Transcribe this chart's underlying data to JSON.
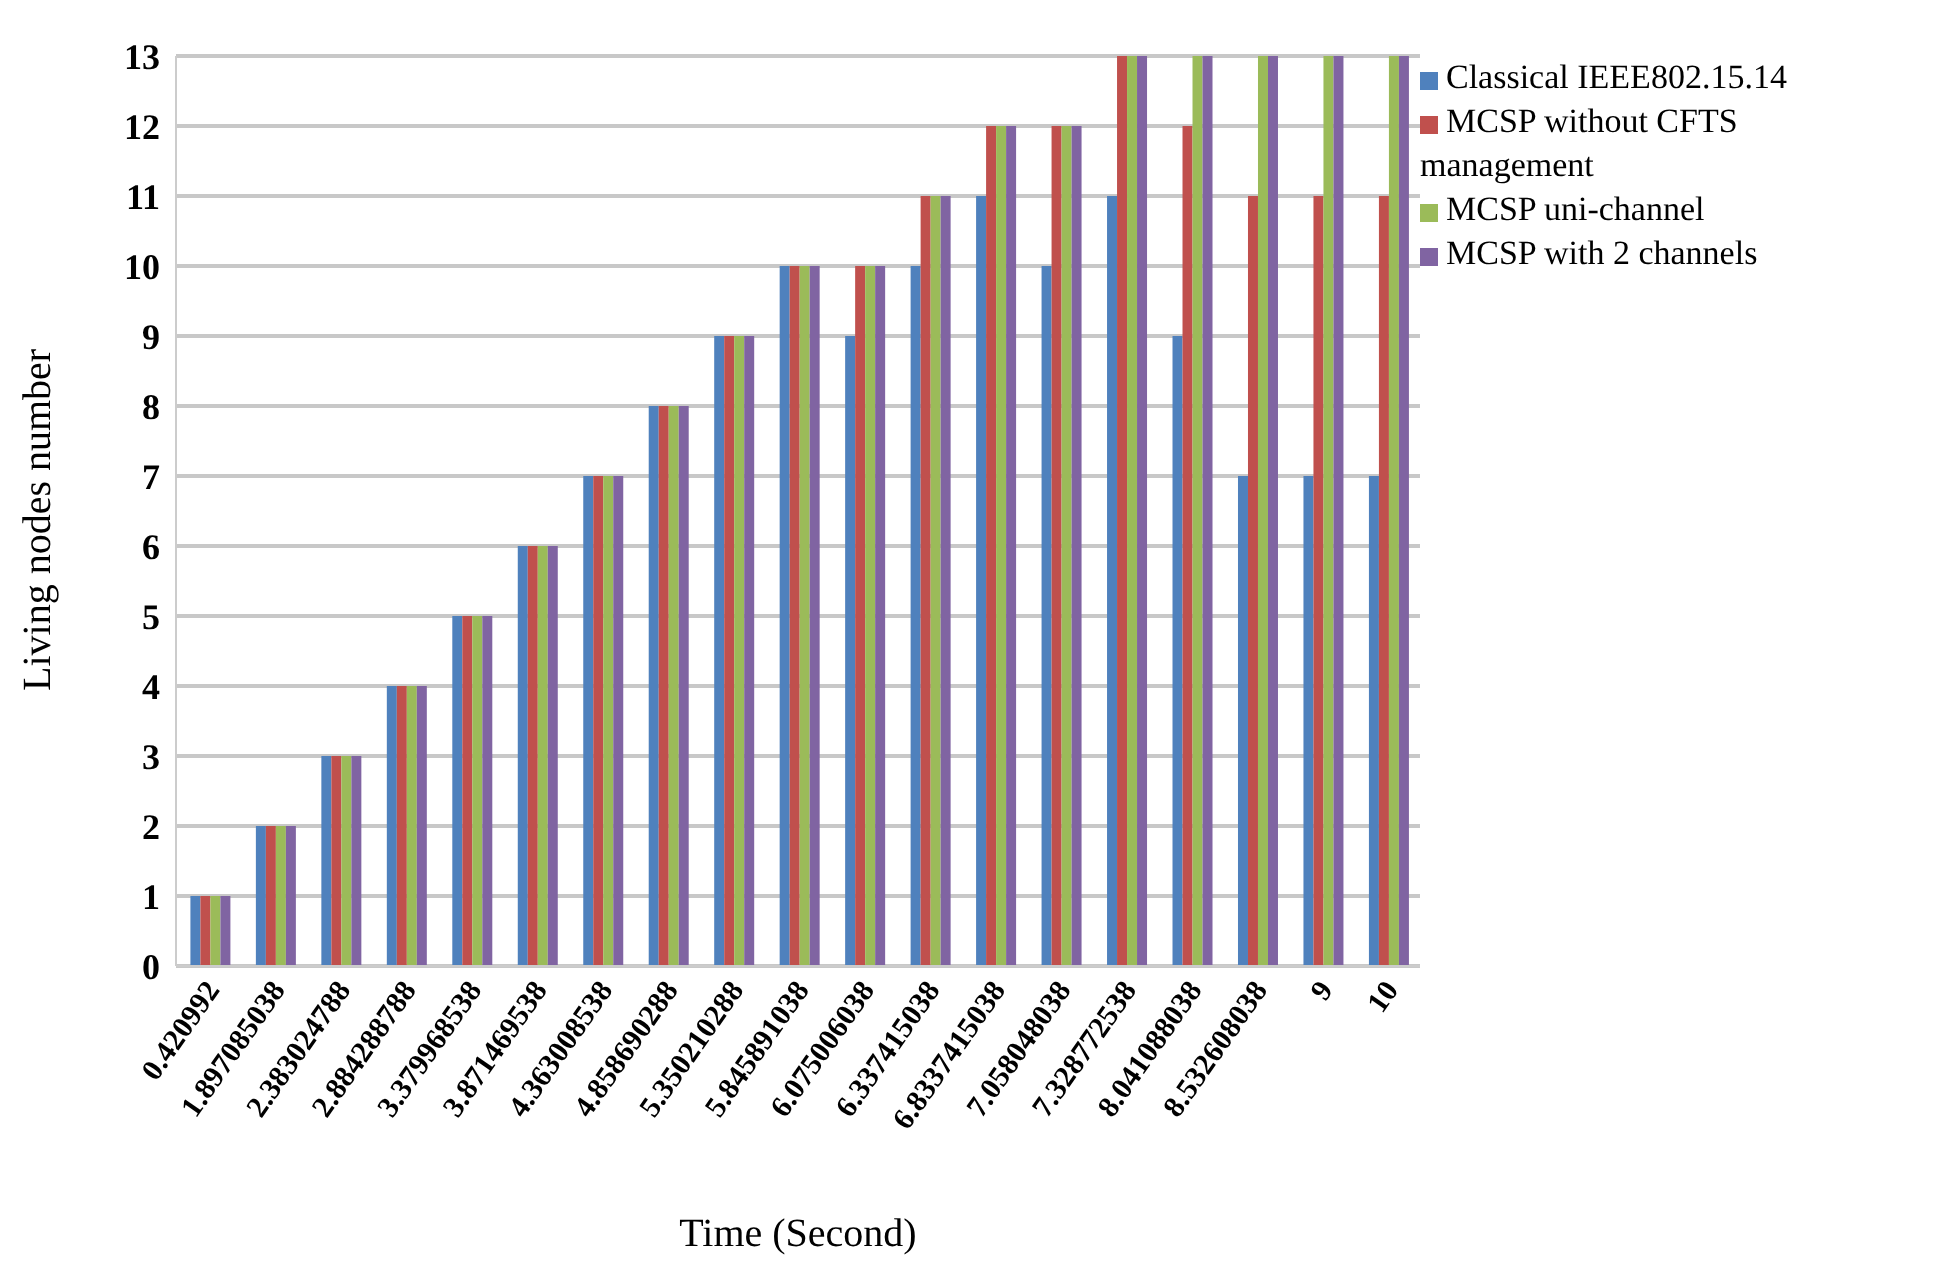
{
  "chart_data": {
    "type": "bar",
    "xlabel": "Time (Second)",
    "ylabel": "Living nodes number",
    "categories": [
      "0.420992",
      "1.897085038",
      "2.383024788",
      "2.884288788",
      "3.379968538",
      "3.871469538",
      "4.363008538",
      "4.858690288",
      "5.350210288",
      "5.845891038",
      "6.075006038",
      "6.337415038",
      "6.8337415038",
      "7.058048038",
      "7.328772538",
      "8.041088038",
      "8.532608038",
      "9",
      "10"
    ],
    "series": [
      {
        "name": "Classical IEEE802.15.14",
        "color": "#4f81bd",
        "values": [
          1,
          2,
          3,
          4,
          5,
          6,
          7,
          8,
          9,
          10,
          9,
          10,
          11,
          10,
          11,
          9,
          7,
          7,
          7
        ]
      },
      {
        "name": "MCSP without CFTS management",
        "color": "#c0504d",
        "values": [
          1,
          2,
          3,
          4,
          5,
          6,
          7,
          8,
          9,
          10,
          10,
          11,
          12,
          12,
          13,
          12,
          11,
          11,
          11
        ]
      },
      {
        "name": "MCSP uni-channel",
        "color": "#9bbb59",
        "values": [
          1,
          2,
          3,
          4,
          5,
          6,
          7,
          8,
          9,
          10,
          10,
          11,
          12,
          12,
          13,
          13,
          13,
          13,
          13
        ]
      },
      {
        "name": "MCSP with 2 channels",
        "color": "#8064a2",
        "values": [
          1,
          2,
          3,
          4,
          5,
          6,
          7,
          8,
          9,
          10,
          10,
          11,
          12,
          12,
          13,
          13,
          13,
          13,
          13
        ]
      }
    ],
    "ylim": [
      0,
      13
    ],
    "yticks": [
      0,
      1,
      2,
      3,
      4,
      5,
      6,
      7,
      8,
      9,
      10,
      11,
      12,
      13
    ],
    "grid": "y",
    "legend": "right"
  }
}
